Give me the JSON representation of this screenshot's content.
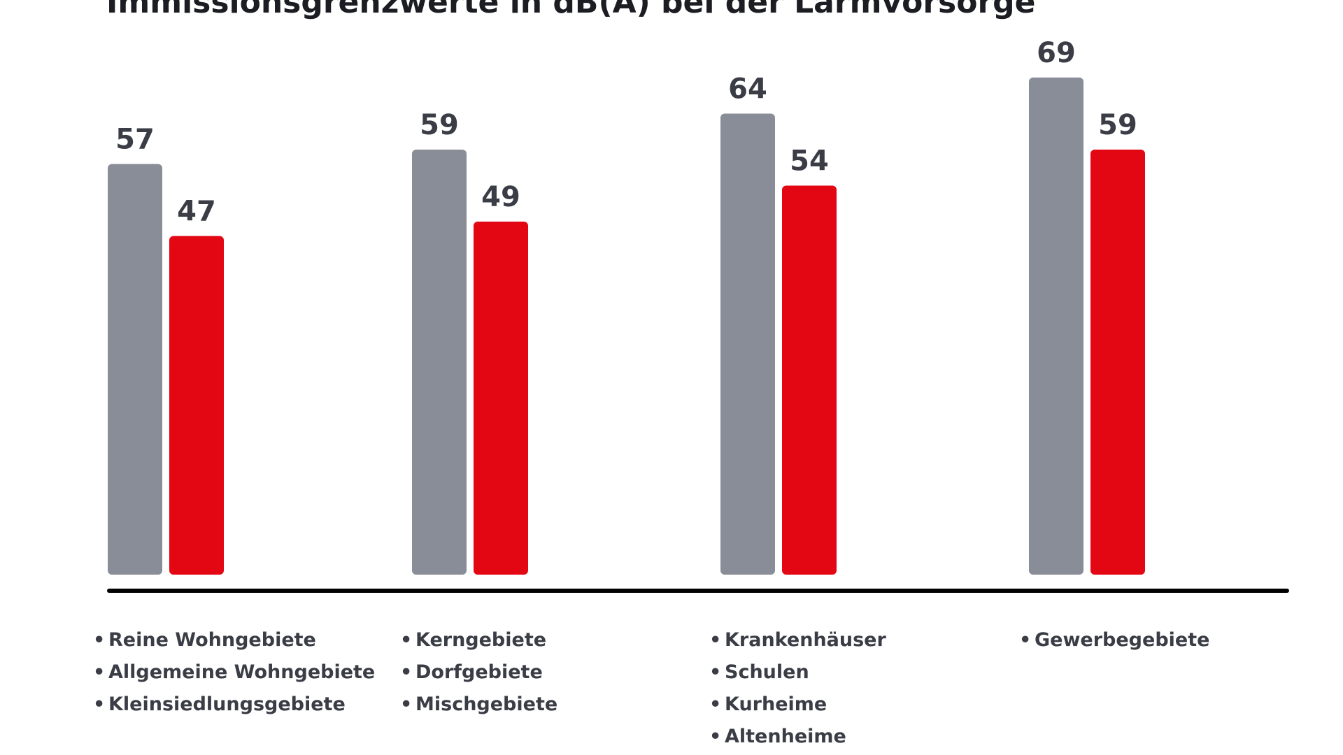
{
  "chart_data": {
    "type": "bar",
    "title": "Immissionsgrenzwerte in dB(A) bei der Lärmvorsorge",
    "xlabel": "",
    "ylabel": "",
    "ylim": [
      0,
      72
    ],
    "grid": false,
    "legend": "none",
    "categories": [
      [
        "Reine Wohngebiete",
        "Allgemeine Wohngebiete",
        "Kleinsiedlungsgebiete"
      ],
      [
        "Kerngebiete",
        "Dorfgebiete",
        "Mischgebiete"
      ],
      [
        "Krankenhäuser",
        "Schulen",
        "Kurheime",
        "Altenheime"
      ],
      [
        "Gewerbegebiete"
      ]
    ],
    "series": [
      {
        "values": [
          57,
          59,
          64,
          69
        ],
        "color": "#898d98"
      },
      {
        "values": [
          47,
          49,
          54,
          59
        ],
        "color": "#e30613"
      }
    ],
    "baseline_color": "#000000"
  }
}
